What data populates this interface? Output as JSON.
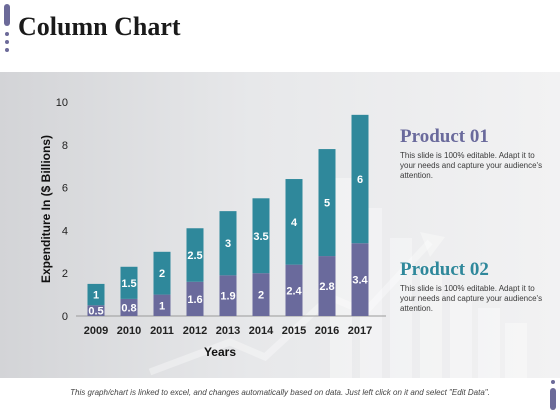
{
  "page": {
    "title": "Column Chart",
    "footer_text": "This graph/chart is linked to excel, and changes automatically based on data. Just left click on it and select \"Edit Data\"."
  },
  "colors": {
    "product_01": "#6a6a9c",
    "product_02": "#2f889b",
    "accent": "#6c6a99"
  },
  "legend": [
    {
      "name": "Product 01",
      "description": "This slide is 100% editable. Adapt it to your needs and capture your audience's attention."
    },
    {
      "name": "Product 02",
      "description": "This slide is 100% editable. Adapt it to your needs and capture your audience's attention."
    }
  ],
  "chart_data": {
    "type": "bar",
    "stacked": true,
    "categories": [
      "2009",
      "2010",
      "2011",
      "2012",
      "2013",
      "2014",
      "2015",
      "2016",
      "2017"
    ],
    "series": [
      {
        "name": "Product 01",
        "values": [
          0.5,
          0.8,
          1,
          1.6,
          1.9,
          2,
          2.4,
          2.8,
          3.4
        ]
      },
      {
        "name": "Product 02",
        "values": [
          1,
          1.5,
          2,
          2.5,
          3,
          3.5,
          4,
          5,
          6
        ]
      }
    ],
    "xlabel": "Years",
    "ylabel": "Expenditure In ($ Billions)",
    "ylim": [
      0,
      10
    ],
    "yticks": [
      0,
      2,
      4,
      6,
      8,
      10
    ],
    "grid": false,
    "legend_position": "right"
  }
}
